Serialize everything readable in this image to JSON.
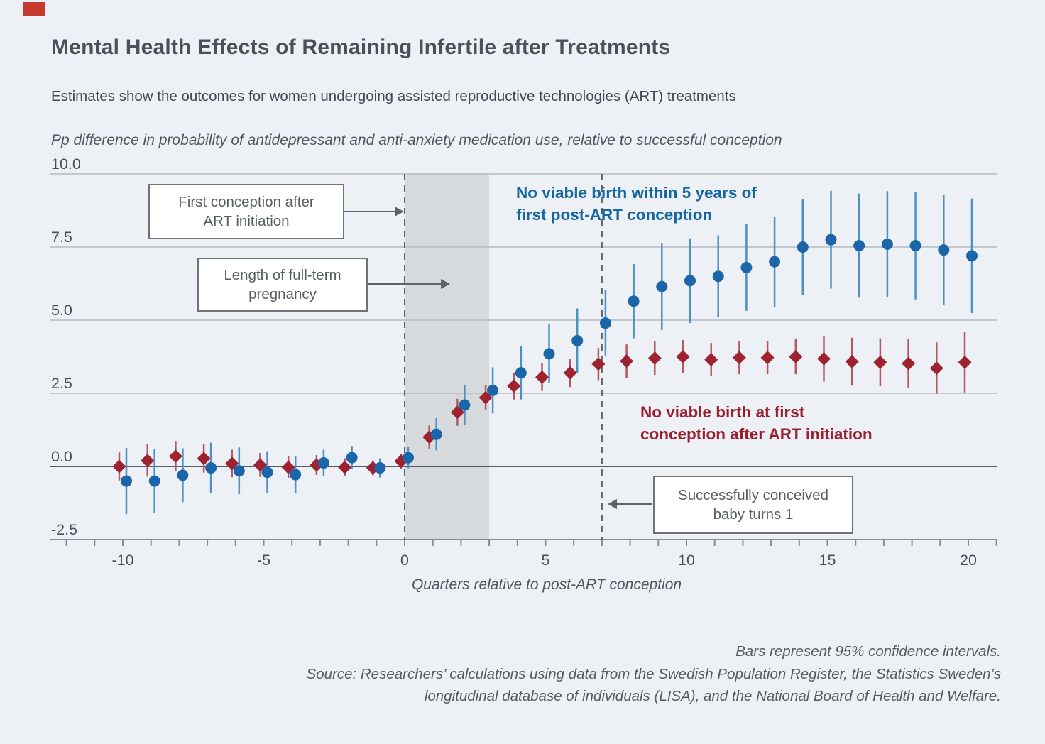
{
  "page": {
    "background": "#edf1f6",
    "corner_mark_color": "#c43a2e"
  },
  "header": {
    "title": "Mental Health Effects of Remaining Infertile after Treatments",
    "subtitle": "Estimates show the outcomes for women undergoing assisted reproductive technologies (ART) treatments"
  },
  "chart_data": {
    "type": "scatter",
    "xlabel": "Quarters relative to post-ART conception",
    "ylabel": "Pp difference in probability of antidepressant and anti-anxiety medication use, relative to successful conception",
    "note": "Bars represent 95% confidence intervals.",
    "x": [
      -10,
      -9,
      -8,
      -7,
      -6,
      -5,
      -4,
      -3,
      -2,
      -1,
      0,
      1,
      2,
      3,
      4,
      5,
      6,
      7,
      8,
      9,
      10,
      11,
      12,
      13,
      14,
      15,
      16,
      17,
      18,
      19,
      20
    ],
    "ylim": [
      -2.5,
      10.0
    ],
    "ytick_values": [
      10.0,
      7.5,
      5.0,
      2.5,
      0.0,
      -2.5
    ],
    "ytick_labels": [
      "10.0",
      "7.5",
      "5.0",
      "2.5",
      "0.0",
      "-2.5"
    ],
    "xtick_values": [
      -10,
      -5,
      0,
      5,
      10,
      15,
      20
    ],
    "xtick_labels": [
      "-10",
      "-5",
      "0",
      "5",
      "10",
      "15",
      "20"
    ],
    "minor_ticks_every_quarter": 1,
    "grid": "horizontal",
    "series": [
      {
        "name": "No viable birth at first conception after ART initiation",
        "marker": "diamond",
        "color": "#9e2230",
        "bar_color": "#b05a63",
        "values": [
          0.0,
          0.2,
          0.35,
          0.27,
          0.1,
          0.05,
          -0.03,
          0.05,
          -0.03,
          -0.05,
          0.18,
          1.0,
          1.85,
          2.35,
          2.75,
          3.05,
          3.2,
          3.5,
          3.6,
          3.7,
          3.75,
          3.65,
          3.72,
          3.72,
          3.75,
          3.68,
          3.58,
          3.56,
          3.52,
          3.36,
          3.56
        ],
        "ci_halfwidth": [
          0.48,
          0.55,
          0.52,
          0.48,
          0.47,
          0.41,
          0.38,
          0.34,
          0.31,
          0.25,
          0.26,
          0.4,
          0.46,
          0.42,
          0.46,
          0.47,
          0.49,
          0.55,
          0.57,
          0.57,
          0.57,
          0.57,
          0.57,
          0.57,
          0.6,
          0.78,
          0.82,
          0.82,
          0.85,
          0.88,
          1.03
        ]
      },
      {
        "name": "No viable birth within 5 years of first post-ART conception",
        "marker": "circle",
        "color": "#1b66a9",
        "bar_color": "#4d90c2",
        "values": [
          -0.5,
          -0.5,
          -0.3,
          -0.05,
          -0.15,
          -0.2,
          -0.28,
          0.12,
          0.3,
          -0.05,
          0.3,
          1.1,
          2.1,
          2.6,
          3.2,
          3.85,
          4.3,
          4.9,
          5.65,
          6.15,
          6.35,
          6.5,
          6.8,
          7.0,
          7.5,
          7.75,
          7.55,
          7.6,
          7.55,
          7.4,
          7.2
        ],
        "ci_halfwidth": [
          1.13,
          1.1,
          0.92,
          0.86,
          0.8,
          0.72,
          0.62,
          0.45,
          0.4,
          0.33,
          0.36,
          0.55,
          0.68,
          0.79,
          0.91,
          1.0,
          1.1,
          1.12,
          1.27,
          1.49,
          1.45,
          1.4,
          1.48,
          1.54,
          1.64,
          1.67,
          1.78,
          1.81,
          1.84,
          1.88,
          1.96
        ]
      }
    ],
    "events": {
      "dashed_lines_x": [
        0,
        7
      ],
      "shaded_region_x": [
        0,
        3
      ]
    }
  },
  "annotations": {
    "box1": {
      "line1": "First conception after",
      "line2": "ART initiation"
    },
    "box2": {
      "line1": "Length of full-term",
      "line2": "pregnancy"
    },
    "box3": {
      "line1": "Successfully conceived",
      "line2": "baby turns 1"
    },
    "label_blue": {
      "line1": "No viable birth within 5 years of",
      "line2": "first post-ART conception"
    },
    "label_red": {
      "line1": "No viable birth at first",
      "line2": "conception after ART initiation"
    }
  },
  "footer": {
    "line1": "Bars represent 95% confidence intervals.",
    "line2": "Source: Researchers’ calculations using data from the Swedish Population Register, the Statistics Sweden’s",
    "line3": "longitudinal database of individuals (LISA), and the National Board of Health and Welfare."
  }
}
